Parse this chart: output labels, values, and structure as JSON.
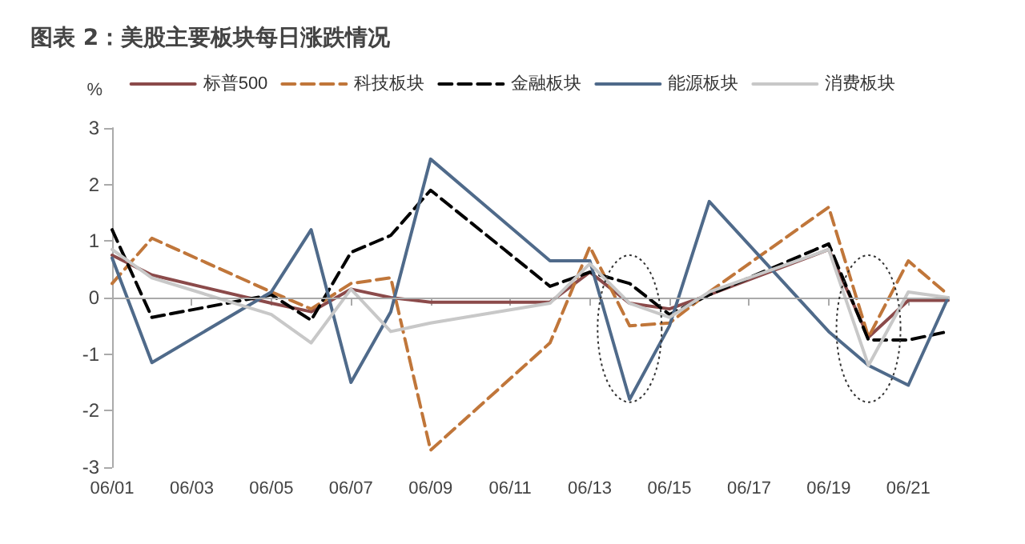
{
  "chart_data": {
    "type": "line",
    "title": "图表 2：美股主要板块每日涨跌情况",
    "ylabel": "%",
    "x": [
      "--06-01",
      "--06-02",
      "--06-05",
      "--06-06",
      "--06-07",
      "--06-08",
      "--06-09",
      "--06-12",
      "--06-13",
      "--06-14",
      "--06-15",
      "--06-16",
      "--06-19",
      "--06-20",
      "--06-21",
      "--06-22"
    ],
    "series": [
      {
        "name": "标普500",
        "color": "#8b4a4a",
        "line_style": "solid",
        "values": [
          0.75,
          0.4,
          -0.1,
          -0.25,
          0.15,
          0,
          -0.08,
          -0.08,
          0.45,
          -0.1,
          -0.2,
          0.05,
          0.85,
          -0.7,
          -0.05,
          -0.05
        ]
      },
      {
        "name": "科技板块",
        "color": "#c0763a",
        "line_style": "dashed",
        "values": [
          0.25,
          1.05,
          0.1,
          -0.2,
          0.25,
          0.35,
          -2.7,
          -0.8,
          0.9,
          -0.5,
          -0.45,
          0.1,
          1.6,
          -0.7,
          0.65,
          0.05
        ]
      },
      {
        "name": "金融板块",
        "color": "#000000",
        "line_style": "dashed",
        "values": [
          1.2,
          -0.35,
          0.05,
          -0.4,
          0.8,
          1.1,
          1.9,
          0.2,
          0.45,
          0.25,
          -0.3,
          0.05,
          0.95,
          -0.75,
          -0.75,
          -0.6
        ]
      },
      {
        "name": "能源板块",
        "color": "#4f6a8a",
        "line_style": "solid",
        "values": [
          0.7,
          -1.15,
          0.1,
          1.2,
          -1.5,
          -0.25,
          2.45,
          0.65,
          0.65,
          -1.8,
          -0.5,
          1.7,
          -0.6,
          -1.2,
          -1.55,
          0
        ]
      },
      {
        "name": "消费板块",
        "color": "#c8c8c8",
        "line_style": "solid",
        "values": [
          0.85,
          0.35,
          -0.3,
          -0.8,
          0.15,
          -0.6,
          -0.45,
          -0.1,
          0.6,
          -0.1,
          -0.35,
          0.1,
          0.85,
          -1.2,
          0.1,
          0
        ]
      }
    ],
    "xlim": [
      "--06-01",
      "--06-22"
    ],
    "xticks": [
      {
        "value": "--06-01",
        "label": "06/01"
      },
      {
        "value": "--06-03",
        "label": "06/03"
      },
      {
        "value": "--06-05",
        "label": "06/05"
      },
      {
        "value": "--06-07",
        "label": "06/07"
      },
      {
        "value": "--06-09",
        "label": "06/09"
      },
      {
        "value": "--06-11",
        "label": "06/11"
      },
      {
        "value": "--06-13",
        "label": "06/13"
      },
      {
        "value": "--06-15",
        "label": "06/15"
      },
      {
        "value": "--06-17",
        "label": "06/17"
      },
      {
        "value": "--06-19",
        "label": "06/19"
      },
      {
        "value": "--06-21",
        "label": "06/21"
      }
    ],
    "ylim": [
      -3,
      3
    ],
    "yticks": [
      -3,
      -2,
      -1,
      0,
      1,
      2,
      3
    ],
    "ref_lines": [
      {
        "axis": "y",
        "value": 0,
        "color": "#aaaaaa"
      }
    ],
    "grid": false,
    "legend": "top",
    "marker": "none"
  }
}
